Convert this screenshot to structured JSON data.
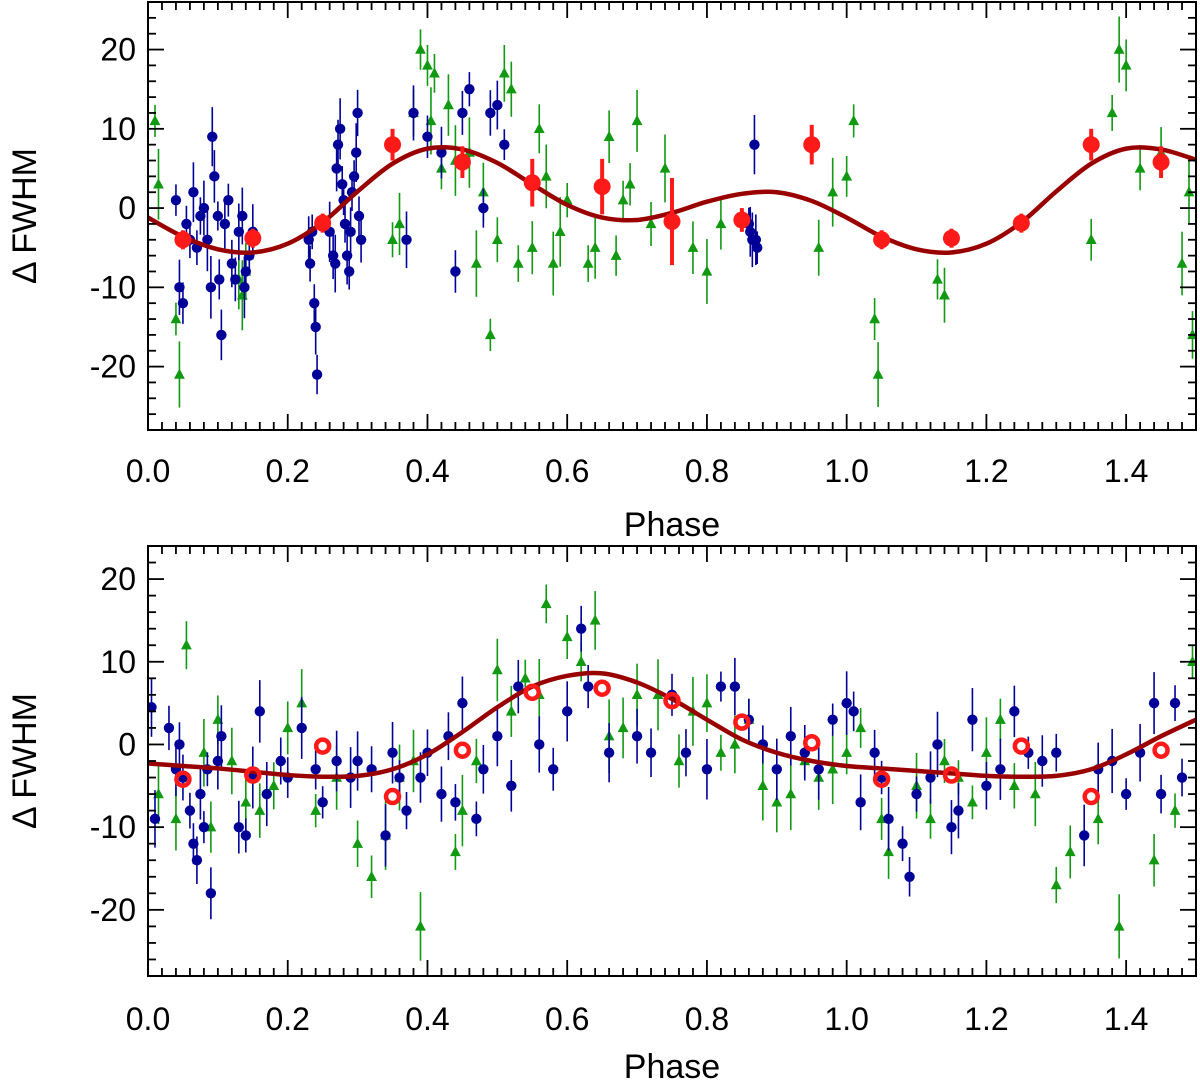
{
  "colors": {
    "blue_points": "#000099",
    "green_points": "#119911",
    "red_points": "#ff1a1a",
    "fit_curve": "#990000",
    "axis": "#000000"
  },
  "chart_data": [
    {
      "type": "scatter",
      "panel": "top",
      "xlabel": "Phase",
      "ylabel": "Δ FWHM",
      "xlim": [
        0.0,
        1.5
      ],
      "ylim": [
        -28,
        26
      ],
      "xticks": [
        "0.0",
        "0.2",
        "0.4",
        "0.6",
        "0.8",
        "1.0",
        "1.2",
        "1.4"
      ],
      "yticks": [
        "20",
        "10",
        "0",
        "-10",
        "-20"
      ],
      "binned_marker": "filled",
      "fit_curve": {
        "x": [
          0.0,
          0.05,
          0.1,
          0.15,
          0.2,
          0.25,
          0.3,
          0.35,
          0.4,
          0.45,
          0.5,
          0.55,
          0.6,
          0.65,
          0.7,
          0.75,
          0.8,
          0.85,
          0.9,
          0.95,
          1.0,
          1.05,
          1.1,
          1.15,
          1.2,
          1.25,
          1.3,
          1.35,
          1.4,
          1.45,
          1.5
        ],
        "y": [
          -1.2,
          -3.6,
          -5.2,
          -5.6,
          -4.5,
          -1.8,
          2.1,
          5.6,
          7.5,
          7.4,
          5.7,
          3.0,
          0.4,
          -1.2,
          -1.5,
          -0.6,
          0.8,
          1.8,
          2.0,
          0.9,
          -1.2,
          -3.6,
          -5.2,
          -5.6,
          -4.5,
          -1.8,
          2.1,
          5.6,
          7.5,
          7.4,
          6.1
        ]
      },
      "binned": [
        {
          "x": 0.05,
          "y": -4.0,
          "err": 1.2
        },
        {
          "x": 0.15,
          "y": -3.8,
          "err": 1.2
        },
        {
          "x": 0.25,
          "y": -1.9,
          "err": 1.2
        },
        {
          "x": 0.35,
          "y": 8.0,
          "err": 2.0
        },
        {
          "x": 0.45,
          "y": 5.8,
          "err": 2.0
        },
        {
          "x": 0.55,
          "y": 3.2,
          "err": 3.0
        },
        {
          "x": 0.65,
          "y": 2.7,
          "err": 3.5
        },
        {
          "x": 0.75,
          "y": -1.7,
          "err": 5.5
        },
        {
          "x": 0.85,
          "y": -1.5,
          "err": 1.5
        },
        {
          "x": 0.95,
          "y": 8.0,
          "err": 2.5
        },
        {
          "x": 1.05,
          "y": -4.0,
          "err": 1.2
        },
        {
          "x": 1.15,
          "y": -3.8,
          "err": 1.2
        },
        {
          "x": 1.25,
          "y": -1.9,
          "err": 1.2
        },
        {
          "x": 1.35,
          "y": 8.0,
          "err": 2.0
        },
        {
          "x": 1.45,
          "y": 5.8,
          "err": 2.0
        }
      ],
      "blue": [
        [
          0.04,
          1
        ],
        [
          0.045,
          -10
        ],
        [
          0.05,
          -12
        ],
        [
          0.055,
          -2
        ],
        [
          0.06,
          -4
        ],
        [
          0.065,
          2
        ],
        [
          0.07,
          -5
        ],
        [
          0.075,
          -1
        ],
        [
          0.08,
          0
        ],
        [
          0.085,
          -4
        ],
        [
          0.09,
          -10
        ],
        [
          0.092,
          9
        ],
        [
          0.095,
          4
        ],
        [
          0.1,
          -1
        ],
        [
          0.102,
          -9
        ],
        [
          0.105,
          -16
        ],
        [
          0.11,
          -2
        ],
        [
          0.115,
          1
        ],
        [
          0.12,
          -7
        ],
        [
          0.125,
          -9
        ],
        [
          0.13,
          -3
        ],
        [
          0.135,
          -1
        ],
        [
          0.138,
          -10
        ],
        [
          0.14,
          -8
        ],
        [
          0.145,
          -6
        ],
        [
          0.15,
          -3
        ],
        [
          0.23,
          -4
        ],
        [
          0.232,
          -7
        ],
        [
          0.235,
          -3
        ],
        [
          0.238,
          -12
        ],
        [
          0.24,
          -15
        ],
        [
          0.242,
          -21
        ],
        [
          0.26,
          -3
        ],
        [
          0.265,
          -6
        ],
        [
          0.268,
          -7
        ],
        [
          0.27,
          5
        ],
        [
          0.272,
          8
        ],
        [
          0.275,
          10
        ],
        [
          0.278,
          3
        ],
        [
          0.28,
          1
        ],
        [
          0.282,
          -2
        ],
        [
          0.285,
          -6
        ],
        [
          0.288,
          -8
        ],
        [
          0.29,
          -3
        ],
        [
          0.292,
          2
        ],
        [
          0.295,
          4
        ],
        [
          0.298,
          7
        ],
        [
          0.3,
          12
        ],
        [
          0.302,
          -1
        ],
        [
          0.305,
          -4
        ],
        [
          0.37,
          -4
        ],
        [
          0.38,
          12
        ],
        [
          0.4,
          9
        ],
        [
          0.42,
          7
        ],
        [
          0.44,
          -8
        ],
        [
          0.45,
          12
        ],
        [
          0.46,
          15
        ],
        [
          0.48,
          0
        ],
        [
          0.49,
          12
        ],
        [
          0.5,
          13
        ],
        [
          0.51,
          8
        ],
        [
          0.86,
          -2
        ],
        [
          0.862,
          -3
        ],
        [
          0.865,
          -4
        ],
        [
          0.868,
          8
        ],
        [
          0.87,
          -4
        ],
        [
          0.872,
          -5
        ]
      ],
      "green": [
        [
          0.01,
          11
        ],
        [
          0.015,
          3
        ],
        [
          0.04,
          -14
        ],
        [
          0.045,
          -21
        ],
        [
          0.13,
          -9
        ],
        [
          0.135,
          -11
        ],
        [
          0.14,
          -8
        ],
        [
          0.35,
          -4
        ],
        [
          0.36,
          -2
        ],
        [
          0.38,
          12
        ],
        [
          0.39,
          20
        ],
        [
          0.4,
          18
        ],
        [
          0.405,
          11
        ],
        [
          0.41,
          17
        ],
        [
          0.42,
          5
        ],
        [
          0.43,
          13
        ],
        [
          0.44,
          6
        ],
        [
          0.46,
          7
        ],
        [
          0.47,
          -7
        ],
        [
          0.48,
          2
        ],
        [
          0.49,
          -16
        ],
        [
          0.5,
          -4
        ],
        [
          0.51,
          17
        ],
        [
          0.52,
          15
        ],
        [
          0.53,
          -7
        ],
        [
          0.55,
          -5
        ],
        [
          0.56,
          10
        ],
        [
          0.57,
          4
        ],
        [
          0.58,
          -7
        ],
        [
          0.59,
          -3
        ],
        [
          0.6,
          1
        ],
        [
          0.63,
          -7
        ],
        [
          0.64,
          -5
        ],
        [
          0.66,
          9
        ],
        [
          0.67,
          -6
        ],
        [
          0.68,
          1
        ],
        [
          0.69,
          3
        ],
        [
          0.7,
          11
        ],
        [
          0.72,
          -2
        ],
        [
          0.74,
          5
        ],
        [
          0.78,
          -5
        ],
        [
          0.8,
          -8
        ],
        [
          0.82,
          -2
        ],
        [
          0.96,
          -5
        ],
        [
          0.98,
          2
        ],
        [
          1.0,
          4
        ],
        [
          1.01,
          11
        ],
        [
          1.04,
          -14
        ],
        [
          1.045,
          -21
        ],
        [
          1.13,
          -9
        ],
        [
          1.14,
          -11
        ],
        [
          1.35,
          -4
        ],
        [
          1.38,
          12
        ],
        [
          1.39,
          20
        ],
        [
          1.4,
          18
        ],
        [
          1.42,
          5
        ],
        [
          1.45,
          7
        ],
        [
          1.48,
          -7
        ],
        [
          1.49,
          2
        ],
        [
          1.495,
          -16
        ]
      ]
    },
    {
      "type": "scatter",
      "panel": "bottom",
      "xlabel": "Phase",
      "ylabel": "Δ FWHM",
      "xlim": [
        0.0,
        1.5
      ],
      "ylim": [
        -28,
        24
      ],
      "xticks": [
        "0.0",
        "0.2",
        "0.4",
        "0.6",
        "0.8",
        "1.0",
        "1.2",
        "1.4"
      ],
      "yticks": [
        "20",
        "10",
        "0",
        "-10",
        "-20"
      ],
      "binned_marker": "open",
      "fit_curve": {
        "x": [
          0.0,
          0.05,
          0.1,
          0.15,
          0.2,
          0.25,
          0.3,
          0.35,
          0.4,
          0.45,
          0.5,
          0.55,
          0.6,
          0.65,
          0.7,
          0.75,
          0.8,
          0.85,
          0.9,
          0.95,
          1.0,
          1.05,
          1.1,
          1.15,
          1.2,
          1.25,
          1.3,
          1.35,
          1.4,
          1.45,
          1.5
        ],
        "y": [
          -2.3,
          -2.6,
          -2.9,
          -3.3,
          -3.7,
          -3.9,
          -3.8,
          -3.0,
          -1.2,
          1.5,
          4.5,
          7.0,
          8.3,
          8.6,
          7.5,
          5.5,
          3.0,
          0.6,
          -1.0,
          -2.0,
          -2.6,
          -2.9,
          -3.2,
          -3.5,
          -3.8,
          -3.9,
          -3.8,
          -3.0,
          -1.2,
          1.0,
          3.0
        ]
      },
      "binned": [
        {
          "x": 0.05,
          "y": -4.2
        },
        {
          "x": 0.15,
          "y": -3.7
        },
        {
          "x": 0.25,
          "y": -0.2
        },
        {
          "x": 0.35,
          "y": -6.3
        },
        {
          "x": 0.45,
          "y": -0.7
        },
        {
          "x": 0.55,
          "y": 6.3
        },
        {
          "x": 0.65,
          "y": 6.8
        },
        {
          "x": 0.75,
          "y": 5.3
        },
        {
          "x": 0.85,
          "y": 2.7
        },
        {
          "x": 0.95,
          "y": 0.2
        },
        {
          "x": 1.05,
          "y": -4.2
        },
        {
          "x": 1.15,
          "y": -3.7
        },
        {
          "x": 1.25,
          "y": -0.2
        },
        {
          "x": 1.35,
          "y": -6.3
        },
        {
          "x": 1.45,
          "y": -0.7
        }
      ],
      "blue": [
        [
          0.005,
          4.5
        ],
        [
          0.01,
          -9
        ],
        [
          0.03,
          2
        ],
        [
          0.04,
          -3
        ],
        [
          0.045,
          0
        ],
        [
          0.05,
          -4
        ],
        [
          0.06,
          -8
        ],
        [
          0.065,
          -12
        ],
        [
          0.07,
          -14
        ],
        [
          0.075,
          -6
        ],
        [
          0.08,
          -10
        ],
        [
          0.085,
          -3
        ],
        [
          0.09,
          -18
        ],
        [
          0.1,
          -2
        ],
        [
          0.105,
          1
        ],
        [
          0.13,
          -10
        ],
        [
          0.14,
          -11
        ],
        [
          0.15,
          -4
        ],
        [
          0.16,
          4
        ],
        [
          0.17,
          -6
        ],
        [
          0.19,
          -2
        ],
        [
          0.2,
          -4
        ],
        [
          0.22,
          2
        ],
        [
          0.24,
          -3
        ],
        [
          0.25,
          -7
        ],
        [
          0.27,
          -2
        ],
        [
          0.29,
          -4
        ],
        [
          0.3,
          -2
        ],
        [
          0.32,
          -3
        ],
        [
          0.34,
          -11
        ],
        [
          0.35,
          -1
        ],
        [
          0.36,
          -4
        ],
        [
          0.37,
          -8
        ],
        [
          0.39,
          -4
        ],
        [
          0.4,
          -1
        ],
        [
          0.42,
          -6
        ],
        [
          0.43,
          1
        ],
        [
          0.44,
          -7
        ],
        [
          0.45,
          5
        ],
        [
          0.47,
          -9
        ],
        [
          0.48,
          -3
        ],
        [
          0.5,
          1
        ],
        [
          0.52,
          -5
        ],
        [
          0.53,
          7
        ],
        [
          0.56,
          0
        ],
        [
          0.58,
          -3
        ],
        [
          0.6,
          4
        ],
        [
          0.62,
          14
        ],
        [
          0.63,
          7
        ],
        [
          0.66,
          -1
        ],
        [
          0.7,
          1
        ],
        [
          0.72,
          -1
        ],
        [
          0.75,
          6
        ],
        [
          0.77,
          -1
        ],
        [
          0.8,
          -3
        ],
        [
          0.82,
          7
        ],
        [
          0.84,
          7
        ],
        [
          0.86,
          3
        ],
        [
          0.88,
          0
        ],
        [
          0.9,
          -3
        ],
        [
          0.92,
          1
        ],
        [
          0.94,
          -1
        ],
        [
          0.96,
          -3
        ],
        [
          0.98,
          3
        ],
        [
          1.0,
          5
        ],
        [
          1.01,
          4
        ],
        [
          1.02,
          -7
        ],
        [
          1.04,
          -1
        ],
        [
          1.05,
          -4
        ],
        [
          1.06,
          -9
        ],
        [
          1.08,
          -12
        ],
        [
          1.09,
          -16
        ],
        [
          1.1,
          -6
        ],
        [
          1.12,
          -4
        ],
        [
          1.13,
          0
        ],
        [
          1.15,
          -10
        ],
        [
          1.16,
          -8
        ],
        [
          1.18,
          3
        ],
        [
          1.2,
          -5
        ],
        [
          1.22,
          -3
        ],
        [
          1.24,
          4
        ],
        [
          1.26,
          -1
        ],
        [
          1.28,
          -2
        ],
        [
          1.3,
          -1
        ],
        [
          1.34,
          -11
        ],
        [
          1.36,
          -3
        ],
        [
          1.38,
          -2
        ],
        [
          1.4,
          -6
        ],
        [
          1.42,
          -1
        ],
        [
          1.44,
          5
        ],
        [
          1.45,
          -6
        ],
        [
          1.47,
          5
        ],
        [
          1.48,
          -4
        ]
      ],
      "green": [
        [
          0.015,
          -6
        ],
        [
          0.04,
          -9
        ],
        [
          0.055,
          12
        ],
        [
          0.08,
          -1
        ],
        [
          0.09,
          -10
        ],
        [
          0.1,
          3
        ],
        [
          0.12,
          -2
        ],
        [
          0.14,
          -7
        ],
        [
          0.16,
          -8
        ],
        [
          0.18,
          -5
        ],
        [
          0.2,
          2
        ],
        [
          0.22,
          5
        ],
        [
          0.24,
          -8
        ],
        [
          0.27,
          -4
        ],
        [
          0.3,
          -12
        ],
        [
          0.32,
          -16
        ],
        [
          0.34,
          -11
        ],
        [
          0.36,
          -4
        ],
        [
          0.38,
          -2
        ],
        [
          0.39,
          -22
        ],
        [
          0.44,
          -13
        ],
        [
          0.45,
          -8
        ],
        [
          0.47,
          -2
        ],
        [
          0.5,
          9
        ],
        [
          0.52,
          4
        ],
        [
          0.54,
          8
        ],
        [
          0.56,
          6
        ],
        [
          0.57,
          17
        ],
        [
          0.6,
          13
        ],
        [
          0.62,
          10
        ],
        [
          0.64,
          15
        ],
        [
          0.66,
          1
        ],
        [
          0.68,
          2
        ],
        [
          0.7,
          6
        ],
        [
          0.73,
          6
        ],
        [
          0.76,
          -2
        ],
        [
          0.78,
          4
        ],
        [
          0.8,
          5
        ],
        [
          0.82,
          -1
        ],
        [
          0.84,
          0
        ],
        [
          0.86,
          3
        ],
        [
          0.88,
          -5
        ],
        [
          0.9,
          -7
        ],
        [
          0.92,
          -6
        ],
        [
          0.94,
          -2
        ],
        [
          0.96,
          -4
        ],
        [
          0.98,
          -3
        ],
        [
          1.0,
          -1
        ],
        [
          1.02,
          2
        ],
        [
          1.05,
          -9
        ],
        [
          1.06,
          -13
        ],
        [
          1.1,
          -5
        ],
        [
          1.12,
          -9
        ],
        [
          1.14,
          -2
        ],
        [
          1.16,
          -4
        ],
        [
          1.18,
          -7
        ],
        [
          1.2,
          -1
        ],
        [
          1.22,
          3
        ],
        [
          1.24,
          -5
        ],
        [
          1.27,
          -6
        ],
        [
          1.3,
          -17
        ],
        [
          1.32,
          -13
        ],
        [
          1.36,
          -9
        ],
        [
          1.39,
          -22
        ],
        [
          1.44,
          -14
        ],
        [
          1.47,
          -8
        ],
        [
          1.495,
          10
        ]
      ]
    }
  ]
}
